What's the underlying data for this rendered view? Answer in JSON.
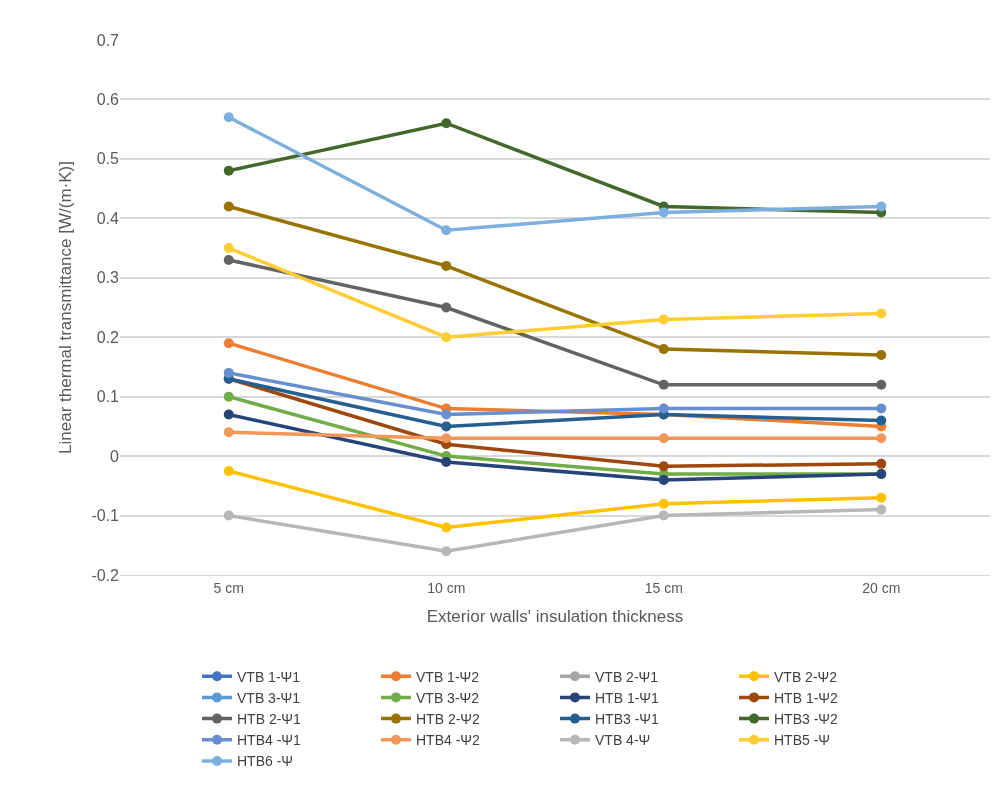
{
  "chart_data": {
    "type": "line",
    "xlabel": "Exterior walls' insulation thickness",
    "ylabel": "Linear thermal transmittance [W/(m·K)]",
    "categories": [
      "5 cm",
      "10 cm",
      "15 cm",
      "20 cm"
    ],
    "ylim": [
      -0.2,
      0.7
    ],
    "yticks": [
      -0.2,
      -0.1,
      0,
      0.1,
      0.2,
      0.3,
      0.4,
      0.5,
      0.6,
      0.7
    ],
    "grid": "y",
    "legend": "bottom",
    "marker": "circle",
    "line_style": "solid",
    "series": [
      {
        "name": "VTB 1-Ψ1",
        "color": "#4472c4",
        "values": [
          null,
          null,
          null,
          null
        ]
      },
      {
        "name": "VTB 1-Ψ2",
        "color": "#ed7d31",
        "values": [
          0.19,
          0.08,
          0.07,
          0.05
        ]
      },
      {
        "name": "VTB 2-Ψ1",
        "color": "#a5a5a5",
        "values": [
          null,
          null,
          null,
          null
        ]
      },
      {
        "name": "VTB 2-Ψ2",
        "color": "#ffc000",
        "values": [
          -0.025,
          -0.12,
          -0.08,
          -0.07
        ]
      },
      {
        "name": "VTB 3-Ψ1",
        "color": "#5b9bd5",
        "values": [
          null,
          null,
          null,
          null
        ]
      },
      {
        "name": "VTB 3-Ψ2",
        "color": "#70ad47",
        "values": [
          0.1,
          0.0,
          -0.03,
          -0.03
        ]
      },
      {
        "name": "HTB 1-Ψ1",
        "color": "#264478",
        "values": [
          0.07,
          -0.01,
          -0.04,
          -0.03
        ]
      },
      {
        "name": "HTB 1-Ψ2",
        "color": "#9e480e",
        "values": [
          0.13,
          0.02,
          -0.017,
          -0.013
        ]
      },
      {
        "name": "HTB 2-Ψ1",
        "color": "#636363",
        "values": [
          0.33,
          0.25,
          0.12,
          0.12
        ]
      },
      {
        "name": "HTB 2-Ψ2",
        "color": "#997300",
        "values": [
          0.42,
          0.32,
          0.18,
          0.17
        ]
      },
      {
        "name": "HTB3 -Ψ1",
        "color": "#255e91",
        "values": [
          0.13,
          0.05,
          0.07,
          0.06
        ]
      },
      {
        "name": "HTB3 -Ψ2",
        "color": "#43682b",
        "values": [
          0.48,
          0.56,
          0.42,
          0.41
        ]
      },
      {
        "name": "HTB4 -Ψ1",
        "color": "#698ed0",
        "values": [
          0.14,
          0.07,
          0.08,
          0.08
        ]
      },
      {
        "name": "HTB4 -Ψ2",
        "color": "#f1975a",
        "values": [
          0.04,
          0.03,
          0.03,
          0.03
        ]
      },
      {
        "name": "VTB 4-Ψ",
        "color": "#b7b7b7",
        "values": [
          -0.1,
          -0.16,
          -0.1,
          -0.09
        ]
      },
      {
        "name": "HTB5 -Ψ",
        "color": "#ffcd33",
        "values": [
          0.35,
          0.2,
          0.23,
          0.24
        ]
      },
      {
        "name": "HTB6 -Ψ",
        "color": "#7cafdd",
        "values": [
          0.57,
          0.38,
          0.41,
          0.42
        ]
      }
    ]
  }
}
